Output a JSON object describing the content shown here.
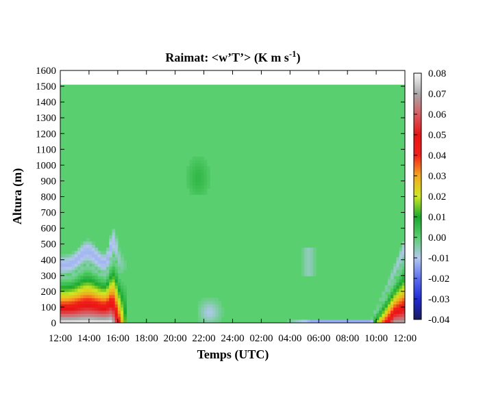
{
  "chart_data": {
    "type": "heatmap",
    "title": "Raimat: <w’T’> (K m s",
    "title_sup": "-1",
    "title_end": ")",
    "xlabel": "Temps (UTC)",
    "ylabel": "Altura (m)",
    "x_ticks": [
      "12:00",
      "14:00",
      "16:00",
      "18:00",
      "20:00",
      "22:00",
      "24:00",
      "02:00",
      "04:00",
      "06:00",
      "08:00",
      "10:00",
      "12:00"
    ],
    "x_range_hours": [
      0,
      24
    ],
    "y_ticks": [
      0,
      100,
      200,
      300,
      400,
      500,
      600,
      700,
      800,
      900,
      1000,
      1100,
      1200,
      1300,
      1400,
      1500,
      1600
    ],
    "ylim": [
      0,
      1600
    ],
    "data_top_m": 1510,
    "colorbar": {
      "ticks": [
        "0.08",
        "0.07",
        "0.06",
        "0.05",
        "0.04",
        "0.03",
        "0.02",
        "0.01",
        "0.00",
        "-0.01",
        "-0.02",
        "-0.03",
        "-0.04"
      ],
      "range": [
        -0.04,
        0.08
      ],
      "stops": [
        {
          "v": -0.04,
          "color": "#1a1a5e"
        },
        {
          "v": -0.03,
          "color": "#1f2bd6"
        },
        {
          "v": -0.02,
          "color": "#5b6ef0"
        },
        {
          "v": -0.01,
          "color": "#b4c8f0"
        },
        {
          "v": 0.0,
          "color": "#59cf6f"
        },
        {
          "v": 0.01,
          "color": "#1aa82e"
        },
        {
          "v": 0.02,
          "color": "#cfe821"
        },
        {
          "v": 0.03,
          "color": "#f2a91f"
        },
        {
          "v": 0.04,
          "color": "#f21f1a"
        },
        {
          "v": 0.05,
          "color": "#e81414"
        },
        {
          "v": 0.06,
          "color": "#d85a60"
        },
        {
          "v": 0.07,
          "color": "#a8a8a8"
        },
        {
          "v": 0.08,
          "color": "#f7f7f7"
        }
      ]
    },
    "background_value": 0.0
  }
}
